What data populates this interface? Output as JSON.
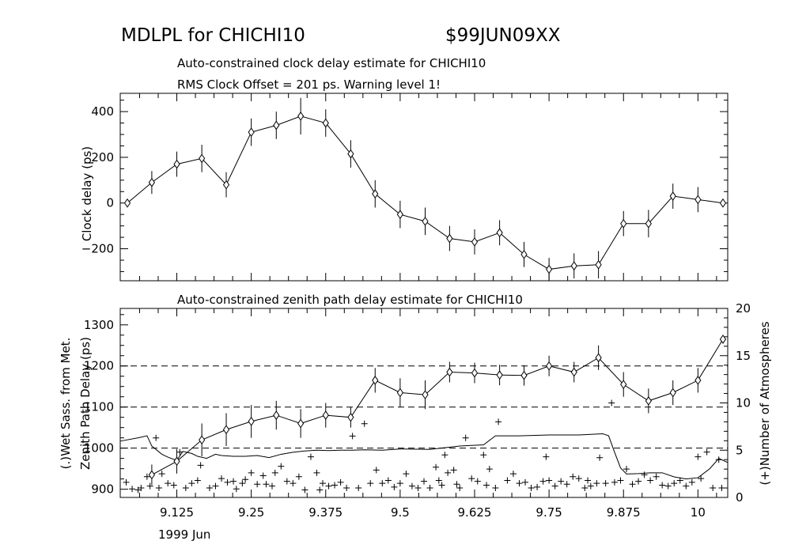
{
  "header": {
    "program": "MDLPL for CHICHI10",
    "experiment": "$99JUN09XX"
  },
  "chart_data": [
    {
      "type": "line",
      "title": "Auto-constrained clock delay estimate for CHICHI10",
      "subtitle": "RMS Clock Offset = 201 ps. Warning level 1!",
      "ylabel": "Clock delay (ps)",
      "xlim": [
        9.03,
        10.05
      ],
      "ylim": [
        -340,
        480
      ],
      "yticks": [
        -200,
        0,
        200,
        400
      ],
      "ytick_labels": [
        "−200",
        "0",
        "200",
        "400"
      ],
      "marker": "diamond",
      "points": [
        {
          "x": 9.042,
          "y": 0,
          "err": 0
        },
        {
          "x": 9.083,
          "y": 90,
          "err": 50
        },
        {
          "x": 9.125,
          "y": 170,
          "err": 55
        },
        {
          "x": 9.167,
          "y": 195,
          "err": 60
        },
        {
          "x": 9.208,
          "y": 80,
          "err": 55
        },
        {
          "x": 9.25,
          "y": 310,
          "err": 60
        },
        {
          "x": 9.292,
          "y": 340,
          "err": 60
        },
        {
          "x": 9.333,
          "y": 380,
          "err": 80
        },
        {
          "x": 9.375,
          "y": 350,
          "err": 60
        },
        {
          "x": 9.417,
          "y": 215,
          "err": 60
        },
        {
          "x": 9.458,
          "y": 40,
          "err": 60
        },
        {
          "x": 9.5,
          "y": -50,
          "err": 60
        },
        {
          "x": 9.542,
          "y": -80,
          "err": 60
        },
        {
          "x": 9.583,
          "y": -155,
          "err": 55
        },
        {
          "x": 9.625,
          "y": -170,
          "err": 55
        },
        {
          "x": 9.667,
          "y": -130,
          "err": 55
        },
        {
          "x": 9.708,
          "y": -225,
          "err": 55
        },
        {
          "x": 9.75,
          "y": -290,
          "err": 50
        },
        {
          "x": 9.792,
          "y": -275,
          "err": 55
        },
        {
          "x": 9.833,
          "y": -270,
          "err": 60
        },
        {
          "x": 9.875,
          "y": -90,
          "err": 55
        },
        {
          "x": 9.917,
          "y": -90,
          "err": 60
        },
        {
          "x": 9.958,
          "y": 30,
          "err": 55
        },
        {
          "x": 10.0,
          "y": 15,
          "err": 55
        },
        {
          "x": 10.042,
          "y": 0,
          "err": 0
        }
      ]
    },
    {
      "type": "line",
      "title": "Auto-constrained zenith path delay estimate for CHICHI10",
      "ylabel": "Zenith Path Delay (ps)",
      "ylabel2": "(.)Wet Sass. from Met.",
      "y2label": "(+)Number of Atmospheres",
      "xlabel": "1999 Jun",
      "xlim": [
        9.03,
        10.05
      ],
      "ylim": [
        880,
        1340
      ],
      "yticks": [
        900,
        1000,
        1100,
        1200,
        1300
      ],
      "y2lim": [
        0,
        20
      ],
      "y2ticks": [
        0,
        5,
        10,
        15,
        20
      ],
      "hlines": [
        1000,
        1100,
        1200
      ],
      "xticks": [
        9.125,
        9.25,
        9.375,
        9.5,
        9.625,
        9.75,
        9.875,
        10
      ],
      "xtick_labels": [
        "9.125",
        "9.25",
        "9.375",
        "9.5",
        "9.625",
        "9.75",
        "9.875",
        "10"
      ],
      "marker": "diamond",
      "points": [
        {
          "x": 9.083,
          "y": 935,
          "err": 25
        },
        {
          "x": 9.125,
          "y": 968,
          "err": 30
        },
        {
          "x": 9.167,
          "y": 1020,
          "err": 40
        },
        {
          "x": 9.208,
          "y": 1045,
          "err": 40
        },
        {
          "x": 9.25,
          "y": 1065,
          "err": 40
        },
        {
          "x": 9.292,
          "y": 1080,
          "err": 35
        },
        {
          "x": 9.333,
          "y": 1060,
          "err": 35
        },
        {
          "x": 9.375,
          "y": 1080,
          "err": 30
        },
        {
          "x": 9.417,
          "y": 1075,
          "err": 25
        },
        {
          "x": 9.458,
          "y": 1165,
          "err": 30
        },
        {
          "x": 9.5,
          "y": 1135,
          "err": 35
        },
        {
          "x": 9.542,
          "y": 1130,
          "err": 35
        },
        {
          "x": 9.583,
          "y": 1185,
          "err": 25
        },
        {
          "x": 9.625,
          "y": 1183,
          "err": 25
        },
        {
          "x": 9.667,
          "y": 1178,
          "err": 25
        },
        {
          "x": 9.708,
          "y": 1177,
          "err": 25
        },
        {
          "x": 9.75,
          "y": 1200,
          "err": 25
        },
        {
          "x": 9.792,
          "y": 1185,
          "err": 25
        },
        {
          "x": 9.833,
          "y": 1220,
          "err": 30
        },
        {
          "x": 9.875,
          "y": 1155,
          "err": 30
        },
        {
          "x": 9.917,
          "y": 1115,
          "err": 30
        },
        {
          "x": 9.958,
          "y": 1135,
          "err": 30
        },
        {
          "x": 10.0,
          "y": 1165,
          "err": 30
        },
        {
          "x": 10.042,
          "y": 1265,
          "err": 0
        }
      ],
      "wet_sass": {
        "x": [
          9.03,
          9.06,
          9.075,
          9.083,
          9.1,
          9.11,
          9.125,
          9.135,
          9.15,
          9.16,
          9.175,
          9.19,
          9.2,
          9.22,
          9.24,
          9.26,
          9.28,
          9.3,
          9.32,
          9.34,
          9.36,
          9.38,
          9.4,
          9.42,
          9.44,
          9.47,
          9.5,
          9.55,
          9.6,
          9.64,
          9.66,
          9.7,
          9.75,
          9.8,
          9.84,
          9.85,
          9.86,
          9.87,
          9.88,
          9.9,
          9.92,
          9.94,
          9.96,
          9.98,
          10.0,
          10.02,
          10.035,
          10.05
        ],
        "y": [
          1017,
          1025,
          1030,
          1005,
          985,
          978,
          970,
          992,
          987,
          980,
          975,
          985,
          982,
          980,
          980,
          982,
          977,
          985,
          990,
          993,
          995,
          994,
          995,
          995,
          996,
          995,
          998,
          997,
          1005,
          1008,
          1030,
          1030,
          1032,
          1032,
          1035,
          1030,
          990,
          952,
          937,
          938,
          940,
          940,
          930,
          925,
          928,
          950,
          975,
          965
        ]
      },
      "atmospheres": [
        {
          "x": 9.04,
          "y": 1.6
        },
        {
          "x": 9.05,
          "y": 0.9
        },
        {
          "x": 9.06,
          "y": 0.8
        },
        {
          "x": 9.065,
          "y": 1.0
        },
        {
          "x": 9.075,
          "y": 2.2
        },
        {
          "x": 9.08,
          "y": 1.2
        },
        {
          "x": 9.09,
          "y": 6.3
        },
        {
          "x": 9.095,
          "y": 1.0
        },
        {
          "x": 9.1,
          "y": 2.5
        },
        {
          "x": 9.11,
          "y": 1.5
        },
        {
          "x": 9.12,
          "y": 1.3
        },
        {
          "x": 9.13,
          "y": 4.8
        },
        {
          "x": 9.14,
          "y": 1.0
        },
        {
          "x": 9.15,
          "y": 1.5
        },
        {
          "x": 9.16,
          "y": 1.8
        },
        {
          "x": 9.165,
          "y": 3.4
        },
        {
          "x": 9.18,
          "y": 1.0
        },
        {
          "x": 9.19,
          "y": 1.2
        },
        {
          "x": 9.2,
          "y": 2.0
        },
        {
          "x": 9.21,
          "y": 1.6
        },
        {
          "x": 9.22,
          "y": 1.7
        },
        {
          "x": 9.225,
          "y": 0.9
        },
        {
          "x": 9.235,
          "y": 1.5
        },
        {
          "x": 9.24,
          "y": 1.9
        },
        {
          "x": 9.25,
          "y": 2.6
        },
        {
          "x": 9.26,
          "y": 1.4
        },
        {
          "x": 9.27,
          "y": 2.3
        },
        {
          "x": 9.275,
          "y": 1.4
        },
        {
          "x": 9.285,
          "y": 1.2
        },
        {
          "x": 9.29,
          "y": 2.6
        },
        {
          "x": 9.3,
          "y": 3.3
        },
        {
          "x": 9.31,
          "y": 1.7
        },
        {
          "x": 9.32,
          "y": 1.5
        },
        {
          "x": 9.33,
          "y": 2.2
        },
        {
          "x": 9.34,
          "y": 0.8
        },
        {
          "x": 9.35,
          "y": 4.3
        },
        {
          "x": 9.36,
          "y": 2.6
        },
        {
          "x": 9.365,
          "y": 0.8
        },
        {
          "x": 9.37,
          "y": 1.5
        },
        {
          "x": 9.38,
          "y": 1.2
        },
        {
          "x": 9.39,
          "y": 1.3
        },
        {
          "x": 9.4,
          "y": 1.6
        },
        {
          "x": 9.41,
          "y": 1.0
        },
        {
          "x": 9.42,
          "y": 6.5
        },
        {
          "x": 9.43,
          "y": 1.0
        },
        {
          "x": 9.44,
          "y": 7.8
        },
        {
          "x": 9.45,
          "y": 1.5
        },
        {
          "x": 9.46,
          "y": 2.9
        },
        {
          "x": 9.47,
          "y": 1.5
        },
        {
          "x": 9.48,
          "y": 1.8
        },
        {
          "x": 9.49,
          "y": 1.1
        },
        {
          "x": 9.5,
          "y": 1.5
        },
        {
          "x": 9.51,
          "y": 2.5
        },
        {
          "x": 9.52,
          "y": 1.2
        },
        {
          "x": 9.53,
          "y": 1.0
        },
        {
          "x": 9.54,
          "y": 1.7
        },
        {
          "x": 9.55,
          "y": 1.0
        },
        {
          "x": 9.56,
          "y": 3.2
        },
        {
          "x": 9.565,
          "y": 1.8
        },
        {
          "x": 9.57,
          "y": 1.3
        },
        {
          "x": 9.575,
          "y": 4.5
        },
        {
          "x": 9.58,
          "y": 2.6
        },
        {
          "x": 9.59,
          "y": 2.9
        },
        {
          "x": 9.595,
          "y": 1.4
        },
        {
          "x": 9.6,
          "y": 1.0
        },
        {
          "x": 9.61,
          "y": 6.3
        },
        {
          "x": 9.62,
          "y": 2.0
        },
        {
          "x": 9.63,
          "y": 1.7
        },
        {
          "x": 9.64,
          "y": 4.5
        },
        {
          "x": 9.645,
          "y": 1.3
        },
        {
          "x": 9.65,
          "y": 3.0
        },
        {
          "x": 9.66,
          "y": 1.0
        },
        {
          "x": 9.665,
          "y": 8.0
        },
        {
          "x": 9.68,
          "y": 1.8
        },
        {
          "x": 9.69,
          "y": 2.5
        },
        {
          "x": 9.7,
          "y": 1.5
        },
        {
          "x": 9.71,
          "y": 1.6
        },
        {
          "x": 9.72,
          "y": 1.0
        },
        {
          "x": 9.73,
          "y": 1.1
        },
        {
          "x": 9.74,
          "y": 1.7
        },
        {
          "x": 9.745,
          "y": 4.3
        },
        {
          "x": 9.75,
          "y": 1.8
        },
        {
          "x": 9.76,
          "y": 1.2
        },
        {
          "x": 9.77,
          "y": 1.7
        },
        {
          "x": 9.78,
          "y": 1.4
        },
        {
          "x": 9.79,
          "y": 2.2
        },
        {
          "x": 9.8,
          "y": 2.0
        },
        {
          "x": 9.81,
          "y": 1.0
        },
        {
          "x": 9.815,
          "y": 1.8
        },
        {
          "x": 9.82,
          "y": 1.2
        },
        {
          "x": 9.83,
          "y": 1.5
        },
        {
          "x": 9.835,
          "y": 4.2
        },
        {
          "x": 9.845,
          "y": 1.5
        },
        {
          "x": 9.855,
          "y": 10.0
        },
        {
          "x": 9.86,
          "y": 1.6
        },
        {
          "x": 9.87,
          "y": 1.8
        },
        {
          "x": 9.88,
          "y": 3.0
        },
        {
          "x": 9.89,
          "y": 1.4
        },
        {
          "x": 9.9,
          "y": 1.7
        },
        {
          "x": 9.91,
          "y": 2.4
        },
        {
          "x": 9.92,
          "y": 1.8
        },
        {
          "x": 9.93,
          "y": 2.2
        },
        {
          "x": 9.94,
          "y": 1.3
        },
        {
          "x": 9.95,
          "y": 1.2
        },
        {
          "x": 9.96,
          "y": 1.5
        },
        {
          "x": 9.97,
          "y": 1.8
        },
        {
          "x": 9.98,
          "y": 1.2
        },
        {
          "x": 9.99,
          "y": 1.6
        },
        {
          "x": 10.0,
          "y": 4.3
        },
        {
          "x": 10.005,
          "y": 2.0
        },
        {
          "x": 10.015,
          "y": 4.8
        },
        {
          "x": 10.025,
          "y": 1.0
        },
        {
          "x": 10.035,
          "y": 4.0
        },
        {
          "x": 10.04,
          "y": 1.0
        }
      ]
    }
  ]
}
